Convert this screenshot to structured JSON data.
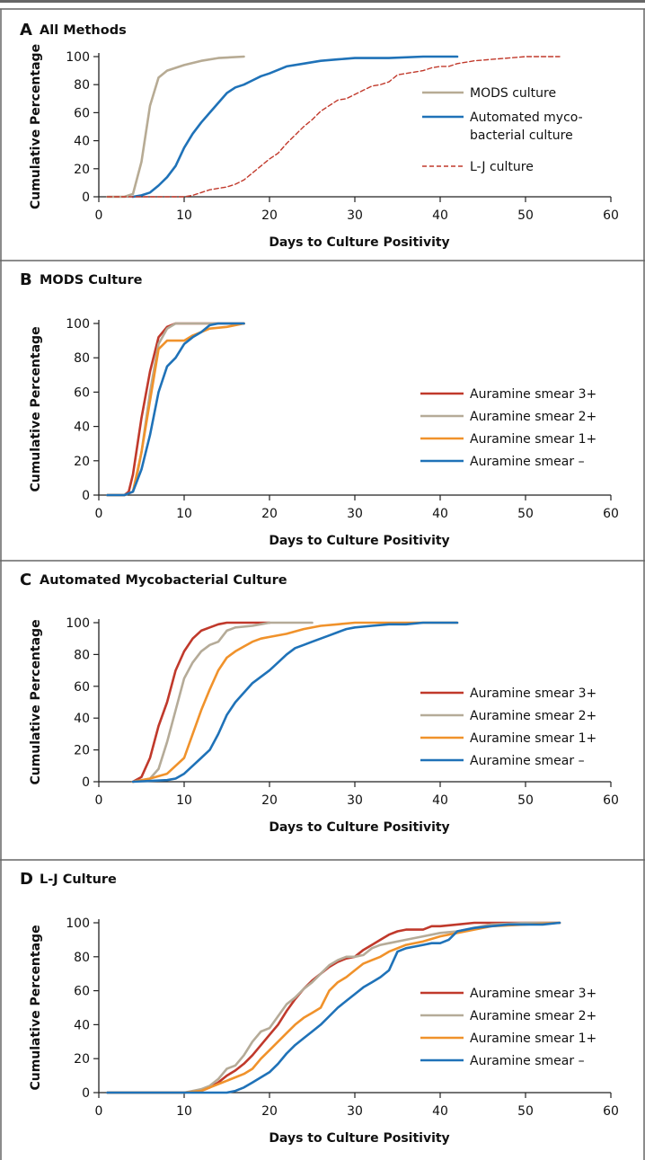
{
  "colors": {
    "frame": "#666666",
    "axis": "#222222",
    "mods": "#b7ab94",
    "automated": "#1f72b8",
    "lj": "#c1392b",
    "smear3": "#c0392b",
    "smear2": "#b5ab98",
    "smear1": "#f0922b",
    "smearneg": "#1f72b8"
  },
  "chart_data": [
    {
      "panel_letter": "A",
      "panel_title": "All Methods",
      "type": "line",
      "xlabel": "Days to Culture Positivity",
      "ylabel": "Cumulative Percentage",
      "xlim": [
        0,
        60
      ],
      "ylim": [
        0,
        100
      ],
      "x_ticks": [
        0,
        10,
        20,
        30,
        40,
        50,
        60
      ],
      "y_ticks": [
        0,
        20,
        40,
        60,
        80,
        100
      ],
      "legend_placement": "right",
      "series": [
        {
          "name": "MODS culture",
          "color": "mods",
          "dash": false,
          "x": [
            1,
            3,
            4,
            5,
            6,
            7,
            8,
            10,
            12,
            14,
            17
          ],
          "y": [
            0,
            0,
            2,
            25,
            65,
            85,
            90,
            94,
            97,
            99,
            100
          ]
        },
        {
          "name": "Automated myco-\nbacterial culture",
          "color": "automated",
          "dash": false,
          "x": [
            4,
            5,
            6,
            7,
            8,
            9,
            10,
            11,
            12,
            13,
            14,
            15,
            16,
            17,
            18,
            19,
            20,
            22,
            24,
            26,
            28,
            30,
            34,
            38,
            42
          ],
          "y": [
            0,
            1,
            3,
            8,
            14,
            22,
            35,
            45,
            53,
            60,
            67,
            74,
            78,
            80,
            83,
            86,
            88,
            93,
            95,
            97,
            98,
            99,
            99,
            100,
            100
          ]
        },
        {
          "name": "L-J culture",
          "color": "lj",
          "dash": true,
          "x": [
            1,
            5,
            10,
            11,
            12,
            13,
            14,
            15,
            16,
            17,
            18,
            19,
            20,
            21,
            22,
            23,
            24,
            25,
            26,
            27,
            28,
            29,
            30,
            31,
            32,
            33,
            34,
            35,
            36,
            37,
            38,
            39,
            40,
            41,
            42,
            44,
            46,
            48,
            50,
            54
          ],
          "y": [
            0,
            0,
            0,
            1,
            3,
            5,
            6,
            7,
            9,
            12,
            17,
            22,
            27,
            31,
            38,
            44,
            50,
            55,
            61,
            65,
            69,
            70,
            73,
            76,
            79,
            80,
            82,
            87,
            88,
            89,
            90,
            92,
            93,
            93,
            95,
            97,
            98,
            99,
            100,
            100
          ]
        }
      ]
    },
    {
      "panel_letter": "B",
      "panel_title": "MODS Culture",
      "type": "line",
      "xlabel": "Days to Culture Positivity",
      "ylabel": "Cumulative Percentage",
      "xlim": [
        0,
        60
      ],
      "ylim": [
        0,
        100
      ],
      "x_ticks": [
        0,
        10,
        20,
        30,
        40,
        50,
        60
      ],
      "y_ticks": [
        0,
        20,
        40,
        60,
        80,
        100
      ],
      "legend_placement": "right",
      "series": [
        {
          "name": "Auramine smear 3+",
          "color": "smear3",
          "dash": false,
          "x": [
            1,
            3,
            3.5,
            4,
            5,
            6,
            7,
            8,
            9,
            17
          ],
          "y": [
            0,
            0,
            2,
            12,
            45,
            72,
            92,
            98,
            100,
            100
          ]
        },
        {
          "name": "Auramine smear 2+",
          "color": "smear2",
          "dash": false,
          "x": [
            1,
            3,
            4,
            4.5,
            5,
            6,
            7,
            8,
            9,
            17
          ],
          "y": [
            0,
            0,
            2,
            12,
            25,
            60,
            88,
            97,
            100,
            100
          ]
        },
        {
          "name": "Auramine smear 1+",
          "color": "smear1",
          "dash": false,
          "x": [
            1,
            3,
            4,
            5,
            6,
            7,
            8,
            9,
            10,
            11,
            13,
            15,
            17
          ],
          "y": [
            0,
            0,
            2,
            25,
            55,
            85,
            90,
            90,
            90,
            93,
            97,
            98,
            100
          ]
        },
        {
          "name": "Auramine smear –",
          "color": "smearneg",
          "dash": false,
          "x": [
            1,
            3,
            4,
            5,
            6,
            7,
            8,
            9,
            10,
            11,
            12,
            13,
            14,
            17
          ],
          "y": [
            0,
            0,
            2,
            15,
            35,
            60,
            75,
            80,
            88,
            92,
            95,
            99,
            100,
            100
          ]
        }
      ]
    },
    {
      "panel_letter": "C",
      "panel_title": "Automated Mycobacterial Culture",
      "type": "line",
      "xlabel": "Days to Culture Positivity",
      "ylabel": "Cumulative Percentage",
      "xlim": [
        0,
        60
      ],
      "ylim": [
        0,
        100
      ],
      "x_ticks": [
        0,
        10,
        20,
        30,
        40,
        50,
        60
      ],
      "y_ticks": [
        0,
        20,
        40,
        60,
        80,
        100
      ],
      "legend_placement": "right",
      "series": [
        {
          "name": "Auramine smear 3+",
          "color": "smear3",
          "dash": false,
          "x": [
            4,
            5,
            6,
            7,
            8,
            9,
            10,
            11,
            12,
            13,
            14,
            15,
            18,
            20
          ],
          "y": [
            0,
            3,
            15,
            35,
            50,
            70,
            82,
            90,
            95,
            97,
            99,
            100,
            100,
            100
          ]
        },
        {
          "name": "Auramine smear 2+",
          "color": "smear2",
          "dash": false,
          "x": [
            4,
            6,
            7,
            8,
            9,
            10,
            11,
            12,
            13,
            14,
            15,
            16,
            18,
            20,
            25
          ],
          "y": [
            0,
            2,
            8,
            25,
            45,
            65,
            75,
            82,
            86,
            88,
            95,
            97,
            98,
            100,
            100
          ]
        },
        {
          "name": "Auramine smear 1+",
          "color": "smear1",
          "dash": false,
          "x": [
            4,
            6,
            8,
            9,
            10,
            11,
            12,
            13,
            14,
            15,
            16,
            17,
            18,
            19,
            20,
            22,
            24,
            26,
            28,
            30,
            42
          ],
          "y": [
            0,
            2,
            5,
            10,
            15,
            30,
            45,
            58,
            70,
            78,
            82,
            85,
            88,
            90,
            91,
            93,
            96,
            98,
            99,
            100,
            100
          ]
        },
        {
          "name": "Auramine smear –",
          "color": "smearneg",
          "dash": false,
          "x": [
            4,
            8,
            9,
            10,
            11,
            12,
            13,
            14,
            15,
            16,
            17,
            18,
            19,
            20,
            21,
            22,
            23,
            24,
            25,
            26,
            27,
            28,
            29,
            30,
            32,
            34,
            36,
            38,
            40,
            42
          ],
          "y": [
            0,
            1,
            2,
            5,
            10,
            15,
            20,
            30,
            42,
            50,
            56,
            62,
            66,
            70,
            75,
            80,
            84,
            86,
            88,
            90,
            92,
            94,
            96,
            97,
            98,
            99,
            99,
            100,
            100,
            100
          ]
        }
      ]
    },
    {
      "panel_letter": "D",
      "panel_title": "L-J Culture",
      "type": "line",
      "xlabel": "Days to Culture Positivity",
      "ylabel": "Cumulative Percentage",
      "xlim": [
        0,
        60
      ],
      "ylim": [
        0,
        100
      ],
      "x_ticks": [
        0,
        10,
        20,
        30,
        40,
        50,
        60
      ],
      "y_ticks": [
        0,
        20,
        40,
        60,
        80,
        100
      ],
      "legend_placement": "right",
      "series": [
        {
          "name": "Auramine smear 3+",
          "color": "smear3",
          "dash": false,
          "x": [
            1,
            10,
            12,
            13,
            14,
            15,
            16,
            17,
            18,
            19,
            20,
            21,
            22,
            23,
            24,
            25,
            26,
            27,
            28,
            29,
            30,
            31,
            32,
            33,
            34,
            35,
            36,
            38,
            39,
            40,
            42,
            44,
            46,
            50,
            54
          ],
          "y": [
            0,
            0,
            1,
            3,
            6,
            10,
            13,
            17,
            22,
            28,
            34,
            40,
            48,
            55,
            61,
            66,
            70,
            74,
            77,
            79,
            80,
            84,
            87,
            90,
            93,
            95,
            96,
            96,
            98,
            98,
            99,
            100,
            100,
            100,
            100
          ]
        },
        {
          "name": "Auramine smear 2+",
          "color": "smear2",
          "dash": false,
          "x": [
            1,
            10,
            11,
            12,
            13,
            14,
            15,
            16,
            17,
            18,
            19,
            20,
            21,
            22,
            23,
            24,
            25,
            26,
            27,
            28,
            29,
            30,
            31,
            32,
            33,
            34,
            36,
            38,
            40,
            42,
            44,
            46,
            50,
            54
          ],
          "y": [
            0,
            0,
            1,
            2,
            4,
            8,
            14,
            16,
            22,
            30,
            36,
            38,
            45,
            52,
            56,
            61,
            65,
            70,
            75,
            78,
            80,
            80,
            81,
            85,
            87,
            88,
            90,
            92,
            94,
            95,
            97,
            99,
            100,
            100
          ]
        },
        {
          "name": "Auramine smear 1+",
          "color": "smear1",
          "dash": false,
          "x": [
            1,
            10,
            12,
            13,
            14,
            15,
            16,
            17,
            18,
            19,
            20,
            21,
            22,
            23,
            24,
            25,
            26,
            27,
            28,
            29,
            30,
            31,
            32,
            33,
            34,
            35,
            36,
            38,
            40,
            42,
            44,
            46,
            50,
            54
          ],
          "y": [
            0,
            0,
            1,
            3,
            5,
            7,
            9,
            11,
            14,
            20,
            25,
            30,
            35,
            40,
            44,
            47,
            50,
            60,
            65,
            68,
            72,
            76,
            78,
            80,
            83,
            85,
            87,
            89,
            92,
            94,
            96,
            98,
            99,
            100
          ]
        },
        {
          "name": "Auramine smear –",
          "color": "smearneg",
          "dash": false,
          "x": [
            1,
            15,
            16,
            17,
            18,
            19,
            20,
            21,
            22,
            23,
            24,
            25,
            26,
            27,
            28,
            29,
            30,
            31,
            32,
            33,
            34,
            35,
            36,
            37,
            38,
            39,
            40,
            41,
            42,
            44,
            46,
            48,
            50,
            52,
            54
          ],
          "y": [
            0,
            0,
            1,
            3,
            6,
            9,
            12,
            17,
            23,
            28,
            32,
            36,
            40,
            45,
            50,
            54,
            58,
            62,
            65,
            68,
            72,
            83,
            85,
            86,
            87,
            88,
            88,
            90,
            95,
            97,
            98,
            99,
            99,
            99,
            100
          ]
        }
      ]
    }
  ]
}
